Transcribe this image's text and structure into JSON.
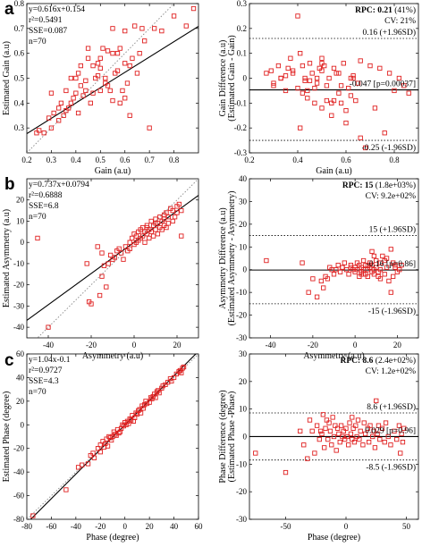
{
  "figure": {
    "panel_letters": [
      "a",
      "b",
      "c"
    ]
  },
  "chart_data": [
    {
      "id": "a-left",
      "type": "scatter",
      "xlabel": "Gain (a.u)",
      "ylabel": "Estimated Gain (a.u)",
      "xlim": [
        0.2,
        0.9
      ],
      "ylim": [
        0.2,
        0.8
      ],
      "xticks": [
        0.2,
        0.3,
        0.4,
        0.5,
        0.6,
        0.7,
        0.8
      ],
      "yticks": [
        0.3,
        0.4,
        0.5,
        0.6,
        0.7,
        0.8
      ],
      "annotations": [
        "y=0.616x+0.154",
        "r²=0.5491",
        "SSE=0.087",
        "n=70"
      ],
      "fit_line": {
        "slope": 0.616,
        "intercept": 0.154
      },
      "identity_line": true,
      "x": [
        0.24,
        0.25,
        0.27,
        0.29,
        0.3,
        0.31,
        0.33,
        0.34,
        0.35,
        0.36,
        0.37,
        0.38,
        0.39,
        0.4,
        0.41,
        0.42,
        0.43,
        0.44,
        0.45,
        0.46,
        0.47,
        0.48,
        0.49,
        0.5,
        0.5,
        0.51,
        0.52,
        0.53,
        0.54,
        0.55,
        0.55,
        0.56,
        0.57,
        0.58,
        0.59,
        0.6,
        0.6,
        0.61,
        0.62,
        0.63,
        0.64,
        0.65,
        0.66,
        0.68,
        0.7,
        0.72,
        0.75,
        0.8,
        0.85,
        0.88,
        0.3,
        0.36,
        0.42,
        0.47,
        0.52,
        0.57,
        0.62,
        0.67,
        0.45,
        0.38,
        0.55,
        0.6,
        0.4,
        0.5,
        0.33,
        0.44,
        0.58,
        0.49,
        0.53,
        0.41
      ],
      "y": [
        0.28,
        0.29,
        0.28,
        0.34,
        0.3,
        0.36,
        0.33,
        0.4,
        0.35,
        0.45,
        0.38,
        0.4,
        0.42,
        0.5,
        0.36,
        0.55,
        0.43,
        0.49,
        0.62,
        0.4,
        0.55,
        0.5,
        0.56,
        0.58,
        0.45,
        0.62,
        0.5,
        0.61,
        0.45,
        0.6,
        0.7,
        0.52,
        0.53,
        0.62,
        0.45,
        0.42,
        0.69,
        0.48,
        0.55,
        0.58,
        0.71,
        0.52,
        0.6,
        0.65,
        0.3,
        0.7,
        0.69,
        0.75,
        0.71,
        0.78,
        0.44,
        0.37,
        0.47,
        0.44,
        0.48,
        0.6,
        0.35,
        0.7,
        0.58,
        0.5,
        0.41,
        0.56,
        0.44,
        0.54,
        0.38,
        0.45,
        0.4,
        0.51,
        0.47,
        0.52
      ]
    },
    {
      "id": "a-right",
      "type": "scatter",
      "xlabel": "Gain (a.u)",
      "ylabel": "Gain Difference (a.u)",
      "ylabel2": "(Estimated Gain - Gain)",
      "xlim": [
        0.2,
        0.9
      ],
      "ylim": [
        -0.3,
        0.3
      ],
      "xticks": [
        0.2,
        0.4,
        0.6,
        0.8
      ],
      "yticks": [
        -0.3,
        -0.2,
        -0.1,
        0,
        0.1,
        0.2,
        0.3
      ],
      "rpc_prefix": "RPC:",
      "rpc_value": "0.21",
      "rpc_suffix": " (41%)",
      "cv": "CV: 21%",
      "upper_label": "0.16 (+1.96SD)",
      "mean_label": "-0.047 [p=0.00037]",
      "lower_label": "-0.25 (-1.96SD)",
      "upper": 0.16,
      "mean": -0.047,
      "lower": -0.25,
      "x": [
        0.27,
        0.29,
        0.3,
        0.32,
        0.33,
        0.35,
        0.36,
        0.37,
        0.38,
        0.4,
        0.41,
        0.41,
        0.42,
        0.43,
        0.44,
        0.45,
        0.46,
        0.47,
        0.48,
        0.49,
        0.5,
        0.5,
        0.51,
        0.52,
        0.53,
        0.54,
        0.55,
        0.56,
        0.57,
        0.58,
        0.59,
        0.6,
        0.61,
        0.62,
        0.63,
        0.64,
        0.65,
        0.66,
        0.68,
        0.7,
        0.72,
        0.74,
        0.76,
        0.78,
        0.8,
        0.82,
        0.84,
        0.86,
        0.45,
        0.35,
        0.4,
        0.55,
        0.6,
        0.3,
        0.5,
        0.62,
        0.43,
        0.38,
        0.47,
        0.52,
        0.57,
        0.66,
        0.33,
        0.42,
        0.48,
        0.54,
        0.58,
        0.5,
        0.63,
        0.44
      ],
      "y": [
        0.02,
        0.03,
        -0.03,
        0.05,
        0.0,
        -0.05,
        0.04,
        0.08,
        0.02,
        0.25,
        0.1,
        -0.2,
        0.05,
        0.0,
        -0.08,
        0.06,
        0.02,
        -0.1,
        0.0,
        0.04,
        -0.12,
        0.08,
        0.05,
        -0.03,
        0.0,
        -0.15,
        0.04,
        0.02,
        -0.06,
        -0.1,
        0.06,
        -0.18,
        -0.04,
        0.0,
        0.01,
        -0.09,
        -0.02,
        0.07,
        -0.28,
        0.05,
        -0.12,
        0.04,
        -0.22,
        0.02,
        -0.05,
        0.0,
        -0.03,
        -0.06,
        -0.01,
        0.01,
        -0.04,
        -0.09,
        -0.13,
        -0.02,
        0.06,
        -0.07,
        -0.01,
        0.03,
        -0.04,
        -0.09,
        0.02,
        -0.24,
        0.0,
        -0.06,
        -0.02,
        -0.1,
        -0.03,
        0.03,
        0.0,
        -0.05
      ]
    },
    {
      "id": "b-left",
      "type": "scatter",
      "xlabel": "Asymmetry (a.u)",
      "ylabel": "Estimated Asymmetry (a.u)",
      "xlim": [
        -50,
        30
      ],
      "ylim": [
        -45,
        30
      ],
      "xticks": [
        -40,
        -20,
        0,
        20
      ],
      "yticks": [
        -40,
        -30,
        -20,
        -10,
        0,
        10,
        20
      ],
      "annotations": [
        "y=0.737x+0.0794",
        "r²=0.6888",
        "SSE=6.8",
        "n=70"
      ],
      "fit_line": {
        "slope": 0.737,
        "intercept": 0.0794
      },
      "identity_line": true,
      "x": [
        -45,
        -40,
        -22,
        -21,
        -20,
        -17,
        -16,
        -15,
        -15,
        -14,
        -13,
        -12,
        -11,
        -10,
        -9,
        -8,
        -7,
        -6,
        -5,
        -4,
        -3,
        -2,
        -2,
        -1,
        0,
        0,
        1,
        1,
        2,
        2,
        3,
        3,
        4,
        4,
        5,
        5,
        6,
        6,
        7,
        7,
        8,
        8,
        9,
        9,
        10,
        10,
        11,
        11,
        12,
        12,
        13,
        13,
        14,
        14,
        15,
        15,
        16,
        16,
        17,
        18,
        18,
        19,
        20,
        20,
        21,
        22,
        22,
        14,
        10,
        6
      ],
      "y": [
        2,
        -40,
        -10,
        -28,
        -29,
        -2,
        -25,
        -5,
        -16,
        -11,
        -21,
        -10,
        -6,
        -8,
        -7,
        -4,
        -3,
        -5,
        -8,
        -2,
        -4,
        -3,
        0,
        2,
        -1,
        4,
        0,
        3,
        1,
        5,
        2,
        6,
        3,
        7,
        0,
        5,
        4,
        8,
        2,
        6,
        5,
        10,
        3,
        8,
        6,
        11,
        4,
        9,
        7,
        12,
        6,
        10,
        8,
        13,
        7,
        14,
        9,
        12,
        16,
        10,
        15,
        12,
        17,
        14,
        18,
        15,
        3,
        11,
        9,
        7
      ]
    },
    {
      "id": "b-right",
      "type": "scatter",
      "xlabel": "Asymmetry (a.u)",
      "ylabel": "Asymmetry Difference (a.u)",
      "ylabel2": "(Estimated Asymmetry - Asymmetry)",
      "xlim": [
        -50,
        30
      ],
      "ylim": [
        -30,
        40
      ],
      "xticks": [
        -40,
        -20,
        0,
        20
      ],
      "yticks": [
        -30,
        -20,
        -10,
        0,
        10,
        20,
        30,
        40
      ],
      "rpc_prefix": "RPC:",
      "rpc_value": "15",
      "rpc_suffix": " (1.8e+03%)",
      "cv": "CV: 9.2e+02%",
      "upper_label": "15 (+1.96SD)",
      "mean_label": "-0.16 [p=0.86]",
      "lower_label": "-15 (-1.96SD)",
      "upper": 15,
      "mean": -0.16,
      "lower": -15,
      "x": [
        -42,
        -25,
        -22,
        -18,
        -16,
        -15,
        -14,
        -12,
        -10,
        -9,
        -8,
        -7,
        -6,
        -5,
        -4,
        -3,
        -2,
        -1,
        0,
        0,
        1,
        1,
        2,
        2,
        3,
        3,
        4,
        4,
        5,
        5,
        6,
        6,
        7,
        7,
        8,
        8,
        9,
        9,
        10,
        10,
        11,
        12,
        12,
        13,
        14,
        14,
        15,
        16,
        17,
        18,
        18,
        19,
        20,
        21,
        22,
        -20,
        -13,
        -11,
        -2,
        3,
        6,
        9,
        12,
        15,
        17,
        -6,
        4,
        8,
        11,
        19
      ],
      "y": [
        4,
        3,
        -10,
        -12,
        -5,
        -8,
        -3,
        1,
        -2,
        0,
        2,
        -1,
        1,
        3,
        0,
        -2,
        2,
        0,
        1,
        -1,
        3,
        0,
        -3,
        2,
        1,
        -1,
        0,
        4,
        -2,
        2,
        0,
        -3,
        1,
        3,
        -1,
        2,
        0,
        -2,
        4,
        1,
        -1,
        3,
        0,
        6,
        -2,
        4,
        1,
        -5,
        9,
        -3,
        3,
        1,
        -1,
        0,
        2,
        -4,
        -4,
        0,
        1,
        -2,
        2,
        6,
        -4,
        5,
        -10,
        1,
        -2,
        8,
        -3,
        2
      ]
    },
    {
      "id": "c-left",
      "type": "scatter",
      "xlabel": "Phase (degree)",
      "ylabel": "Estimated Phase (degree)",
      "xlim": [
        -80,
        60
      ],
      "ylim": [
        -80,
        60
      ],
      "xticks": [
        -80,
        -60,
        -40,
        -20,
        0,
        20,
        40,
        60
      ],
      "yticks": [
        -80,
        -60,
        -40,
        -20,
        0,
        20,
        40,
        60
      ],
      "annotations": [
        "y=1.04x-0.1",
        "r²=0.9727",
        "SSE=4.3",
        "n=70"
      ],
      "fit_line": {
        "slope": 1.04,
        "intercept": -0.1
      },
      "identity_line": true,
      "x": [
        -75,
        -48,
        -38,
        -30,
        -28,
        -25,
        -22,
        -20,
        -20,
        -18,
        -17,
        -16,
        -15,
        -14,
        -13,
        -12,
        -10,
        -9,
        -8,
        -7,
        -6,
        -5,
        -4,
        -3,
        -2,
        -1,
        0,
        1,
        2,
        3,
        4,
        5,
        6,
        7,
        8,
        9,
        10,
        11,
        12,
        13,
        14,
        15,
        16,
        17,
        18,
        20,
        21,
        22,
        23,
        24,
        25,
        26,
        27,
        28,
        30,
        31,
        33,
        35,
        37,
        38,
        40,
        42,
        44,
        45,
        46,
        47,
        48,
        -35,
        -26,
        -11
      ],
      "y": [
        -77,
        -55,
        -36,
        -33,
        -26,
        -28,
        -20,
        -23,
        -17,
        -14,
        -19,
        -16,
        -12,
        -18,
        -10,
        -11,
        -10,
        -6,
        -8,
        -9,
        -4,
        -7,
        -6,
        -3,
        0,
        -1,
        2,
        0,
        3,
        1,
        5,
        4,
        8,
        3,
        6,
        10,
        9,
        12,
        13,
        10,
        16,
        14,
        17,
        20,
        18,
        19,
        23,
        22,
        24,
        26,
        23,
        28,
        29,
        27,
        31,
        33,
        34,
        36,
        39,
        37,
        40,
        43,
        45,
        46,
        44,
        48,
        49,
        -34,
        -24,
        -13
      ]
    },
    {
      "id": "c-right",
      "type": "scatter",
      "xlabel": "Phase (degree)",
      "ylabel": "Phase Difference (degree)",
      "ylabel2": "(Estimated Phase -Phase)",
      "xlim": [
        -80,
        60
      ],
      "ylim": [
        -30,
        30
      ],
      "xticks": [
        -50,
        0,
        50
      ],
      "yticks": [
        -30,
        -20,
        -10,
        0,
        10,
        20,
        30
      ],
      "rpc_prefix": "RPC:",
      "rpc_value": "8.6",
      "rpc_suffix": " (2.4e+02%)",
      "cv": "CV: 1.2e+02%",
      "upper_label": "8.6 (+1.96SD)",
      "mean_label": "0.029 [p=0.96]",
      "lower_label": "-8.5 (-1.96SD)",
      "upper": 8.6,
      "mean": 0.029,
      "lower": -8.5,
      "x": [
        -75,
        -50,
        -38,
        -35,
        -30,
        -28,
        -26,
        -24,
        -22,
        -20,
        -19,
        -18,
        -17,
        -16,
        -15,
        -14,
        -13,
        -12,
        -11,
        -10,
        -9,
        -8,
        -7,
        -6,
        -5,
        -4,
        -3,
        -2,
        -1,
        0,
        1,
        2,
        3,
        4,
        5,
        6,
        7,
        8,
        9,
        10,
        11,
        12,
        14,
        15,
        16,
        18,
        19,
        20,
        22,
        23,
        24,
        25,
        26,
        27,
        28,
        30,
        32,
        33,
        35,
        37,
        40,
        42,
        44,
        45,
        46,
        47,
        48,
        -32,
        -21,
        5
      ],
      "y": [
        -6,
        -13,
        2,
        -3,
        6,
        2,
        -6,
        4,
        -1,
        1,
        8,
        -4,
        3,
        6,
        -1,
        5,
        2,
        -3,
        7,
        0,
        4,
        -5,
        3,
        1,
        -2,
        4,
        0,
        2,
        -1,
        3,
        0,
        -3,
        5,
        1,
        -1,
        3,
        -2,
        4,
        0,
        6,
        -1,
        2,
        -3,
        5,
        1,
        3,
        -2,
        4,
        0,
        2,
        -4,
        13,
        1,
        4,
        -1,
        3,
        -2,
        5,
        0,
        -3,
        2,
        -1,
        4,
        -6,
        1,
        -2,
        3,
        -8,
        2,
        7
      ]
    }
  ]
}
